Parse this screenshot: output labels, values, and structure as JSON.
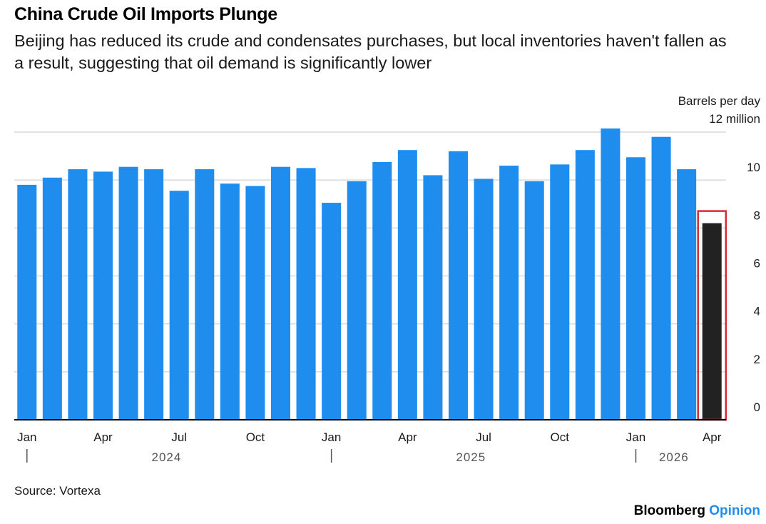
{
  "title": "China Crude Oil Imports Plunge",
  "subtitle": "Beijing has reduced its crude and condensates purchases, but local inventories haven't fallen as a result, suggesting that oil demand is significantly lower",
  "source": "Source: Vortexa",
  "brand": {
    "name": "Bloomberg",
    "section": "Opinion"
  },
  "colors": {
    "bar": "#1f8ded",
    "highlight_bar": "#222222",
    "highlight_box": "#d62b2b",
    "grid": "#d9d9d9",
    "axis": "#000000"
  },
  "chart_data": {
    "type": "bar",
    "title": "China Crude Oil Imports Plunge",
    "ylabel": "Barrels per day",
    "y_unit_label": "12 million",
    "ylim": [
      0,
      12
    ],
    "yticks": [
      0,
      2,
      4,
      6,
      8,
      10
    ],
    "grid": true,
    "categories": [
      "Jan 2024",
      "Feb 2024",
      "Mar 2024",
      "Apr 2024",
      "May 2024",
      "Jun 2024",
      "Jul 2024",
      "Aug 2024",
      "Sep 2024",
      "Oct 2024",
      "Nov 2024",
      "Dec 2024",
      "Jan 2025",
      "Feb 2025",
      "Mar 2025",
      "Apr 2025",
      "May 2025",
      "Jun 2025",
      "Jul 2025",
      "Aug 2025",
      "Sep 2025",
      "Oct 2025",
      "Nov 2025",
      "Dec 2025",
      "Jan 2026",
      "Feb 2026",
      "Mar 2026",
      "Apr 2026"
    ],
    "values": [
      9.8,
      10.1,
      10.45,
      10.35,
      10.55,
      10.45,
      9.55,
      10.45,
      9.85,
      9.75,
      10.55,
      10.5,
      9.05,
      9.95,
      10.75,
      11.25,
      10.2,
      11.2,
      10.05,
      10.6,
      9.95,
      10.65,
      11.25,
      12.15,
      10.95,
      11.8,
      10.45,
      8.2
    ],
    "highlight_index": 27,
    "month_ticks": [
      {
        "index": 0,
        "label": "Jan"
      },
      {
        "index": 3,
        "label": "Apr"
      },
      {
        "index": 6,
        "label": "Jul"
      },
      {
        "index": 9,
        "label": "Oct"
      },
      {
        "index": 12,
        "label": "Jan"
      },
      {
        "index": 15,
        "label": "Apr"
      },
      {
        "index": 18,
        "label": "Jul"
      },
      {
        "index": 21,
        "label": "Oct"
      },
      {
        "index": 24,
        "label": "Jan"
      },
      {
        "index": 27,
        "label": "Apr"
      }
    ],
    "years": [
      {
        "label": "2024",
        "start": 0,
        "end": 11
      },
      {
        "label": "2025",
        "start": 12,
        "end": 23
      },
      {
        "label": "2026",
        "start": 24,
        "end": 27
      }
    ]
  }
}
